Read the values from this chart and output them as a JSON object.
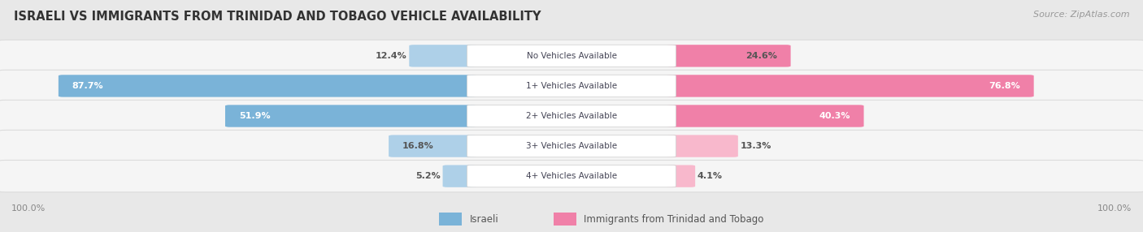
{
  "title": "ISRAELI VS IMMIGRANTS FROM TRINIDAD AND TOBAGO VEHICLE AVAILABILITY",
  "source": "Source: ZipAtlas.com",
  "categories": [
    "No Vehicles Available",
    "1+ Vehicles Available",
    "2+ Vehicles Available",
    "3+ Vehicles Available",
    "4+ Vehicles Available"
  ],
  "israeli_values": [
    12.4,
    87.7,
    51.9,
    16.8,
    5.2
  ],
  "immigrant_values": [
    24.6,
    76.8,
    40.3,
    13.3,
    4.1
  ],
  "max_value": 100.0,
  "israeli_color": "#7ab3d8",
  "immigrant_color": "#f080a8",
  "immigrant_color_light": "#f8b8cc",
  "israeli_color_light": "#aed0e8",
  "fig_bg": "#e8e8e8",
  "row_bg": "#f5f5f5",
  "row_edge": "#dcdcdc",
  "center_box_bg": "#ffffff",
  "label_white": "#ffffff",
  "label_dark": "#555555",
  "title_color": "#333333",
  "source_color": "#999999",
  "legend_text": "#555555",
  "bottom_label_color": "#888888"
}
